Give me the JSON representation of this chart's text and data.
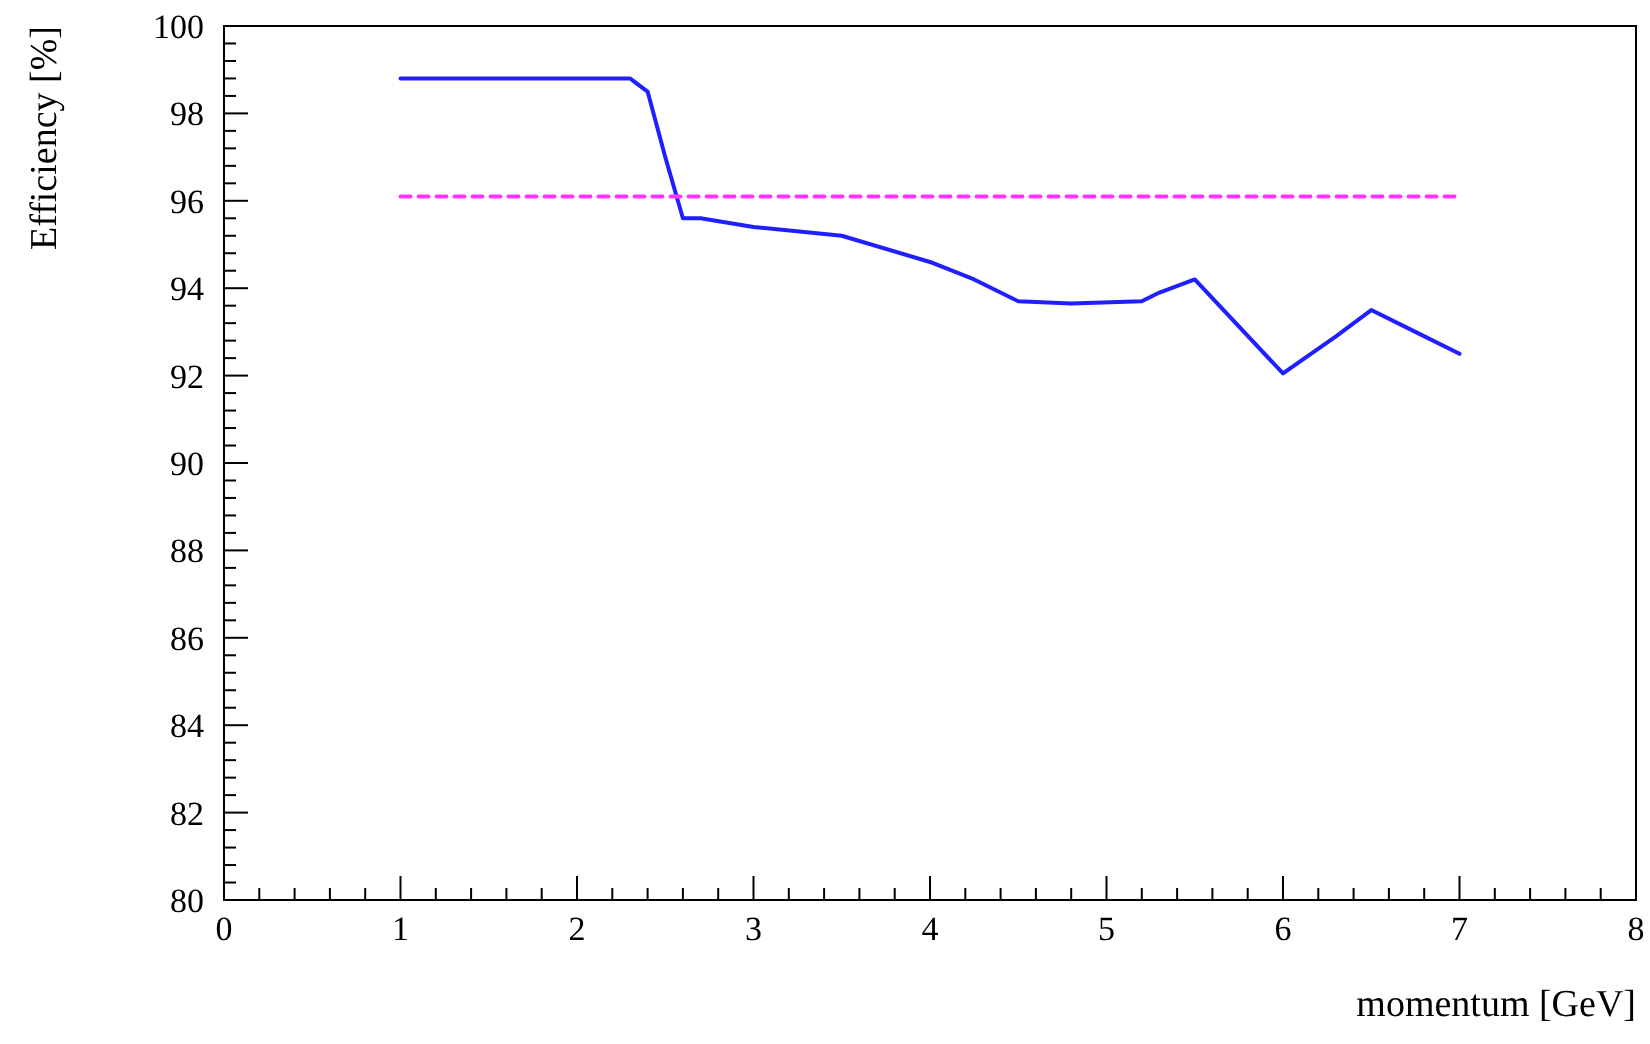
{
  "chart_data": {
    "type": "line",
    "xlabel": "momentum [GeV]",
    "ylabel": "Efficiency [%]",
    "xlim": [
      0,
      8
    ],
    "ylim": [
      80,
      100
    ],
    "xticks": [
      0,
      1,
      2,
      3,
      4,
      5,
      6,
      7,
      8
    ],
    "yticks": [
      80,
      82,
      84,
      86,
      88,
      90,
      92,
      94,
      96,
      98,
      100
    ],
    "grid": false,
    "series": [
      {
        "color": "#1f1fff",
        "line_style": "solid",
        "x": [
          1,
          2,
          2.3,
          2.4,
          2.5,
          2.6,
          2.7,
          3,
          3.5,
          4,
          4.25,
          4.5,
          4.8,
          5.2,
          5.3,
          5.5,
          6,
          6.3,
          6.5,
          6.75,
          7
        ],
        "values": [
          98.8,
          98.8,
          98.8,
          98.5,
          97,
          95.6,
          95.6,
          95.4,
          95.2,
          94.6,
          94.2,
          93.7,
          93.65,
          93.7,
          93.9,
          94.2,
          92.05,
          92.9,
          93.5,
          93,
          92.5
        ]
      },
      {
        "color": "#ff33ff",
        "line_style": "dashed",
        "x": [
          1,
          7
        ],
        "values": [
          96.1,
          96.1
        ]
      }
    ]
  }
}
